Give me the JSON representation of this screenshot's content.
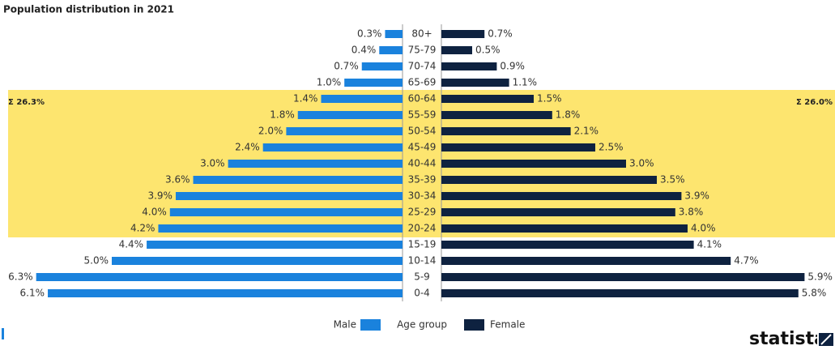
{
  "chart_data": {
    "type": "pyramid",
    "title": "Population distribution in 2021",
    "categories": [
      "80+",
      "75-79",
      "70-74",
      "65-69",
      "60-64",
      "55-59",
      "50-54",
      "45-49",
      "40-44",
      "35-39",
      "30-34",
      "25-29",
      "20-24",
      "15-19",
      "10-14",
      "5-9",
      "0-4"
    ],
    "category_label": "Age group",
    "series": [
      {
        "name": "Male",
        "color": "#1a82dd",
        "values": [
          0.3,
          0.4,
          0.7,
          1.0,
          1.4,
          1.8,
          2.0,
          2.4,
          3.0,
          3.6,
          3.9,
          4.0,
          4.2,
          4.4,
          5.0,
          6.3,
          6.1
        ],
        "value_labels": [
          "0.3%",
          "0.4%",
          "0.7%",
          "1.0%",
          "1.4%",
          "1.8%",
          "2.0%",
          "2.4%",
          "3.0%",
          "3.6%",
          "3.9%",
          "4.0%",
          "4.2%",
          "4.4%",
          "5.0%",
          "6.3%",
          "6.1%"
        ]
      },
      {
        "name": "Female",
        "color": "#0e2240",
        "values": [
          0.7,
          0.5,
          0.9,
          1.1,
          1.5,
          1.8,
          2.1,
          2.5,
          3.0,
          3.5,
          3.9,
          3.8,
          4.0,
          4.1,
          4.7,
          5.9,
          5.8
        ],
        "value_labels": [
          "0.7%",
          "0.5%",
          "0.9%",
          "1.1%",
          "1.5%",
          "1.8%",
          "2.1%",
          "2.5%",
          "3.0%",
          "3.5%",
          "3.9%",
          "3.8%",
          "4.0%",
          "4.1%",
          "4.7%",
          "5.9%",
          "5.8%"
        ]
      }
    ],
    "highlight_categories": [
      "60-64",
      "20-24"
    ],
    "highlight_color": "#fde56f",
    "annotations": [
      "Σ 26.3%",
      "Σ 26.0%"
    ],
    "source": "statista"
  }
}
